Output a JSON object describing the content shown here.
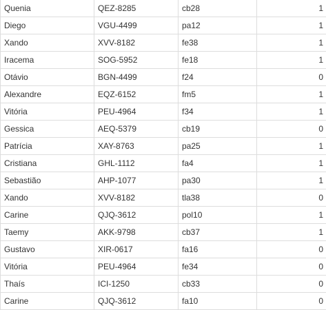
{
  "rows": [
    {
      "name": "Quenia",
      "plate": "QEZ-8285",
      "code": "cb28",
      "flag": "1"
    },
    {
      "name": "Diego",
      "plate": "VGU-4499",
      "code": "pa12",
      "flag": "1"
    },
    {
      "name": "Xando",
      "plate": "XVV-8182",
      "code": "fe38",
      "flag": "1"
    },
    {
      "name": "Iracema",
      "plate": "SOG-5952",
      "code": "fe18",
      "flag": "1"
    },
    {
      "name": "Otávio",
      "plate": "BGN-4499",
      "code": "f24",
      "flag": "0"
    },
    {
      "name": "Alexandre",
      "plate": "EQZ-6152",
      "code": "fm5",
      "flag": "1"
    },
    {
      "name": "Vitória",
      "plate": "PEU-4964",
      "code": "f34",
      "flag": "1"
    },
    {
      "name": "Gessica",
      "plate": "AEQ-5379",
      "code": "cb19",
      "flag": "0"
    },
    {
      "name": "Patrícia",
      "plate": "XAY-8763",
      "code": "pa25",
      "flag": "1"
    },
    {
      "name": "Cristiana",
      "plate": "GHL-1112",
      "code": "fa4",
      "flag": "1"
    },
    {
      "name": "Sebastião",
      "plate": "AHP-1077",
      "code": "pa30",
      "flag": "1"
    },
    {
      "name": "Xando",
      "plate": "XVV-8182",
      "code": "tla38",
      "flag": "0"
    },
    {
      "name": "Carine",
      "plate": "QJQ-3612",
      "code": "pol10",
      "flag": "1"
    },
    {
      "name": "Taemy",
      "plate": "AKK-9798",
      "code": "cb37",
      "flag": "1"
    },
    {
      "name": "Gustavo",
      "plate": "XIR-0617",
      "code": "fa16",
      "flag": "0"
    },
    {
      "name": "Vitória",
      "plate": "PEU-4964",
      "code": "fe34",
      "flag": "0"
    },
    {
      "name": "Thaís",
      "plate": "ICI-1250",
      "code": "cb33",
      "flag": "0"
    },
    {
      "name": "Carine",
      "plate": "QJQ-3612",
      "code": "fa10",
      "flag": "0"
    }
  ]
}
